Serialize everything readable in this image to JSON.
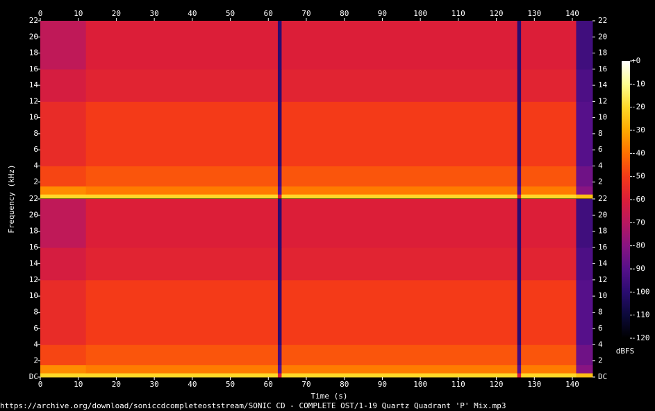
{
  "chart_data": {
    "type": "spectrogram",
    "xlabel": "Time (s)",
    "ylabel": "Frequency (kHz)",
    "footer": "https://archive.org/download/soniccdcompleteoststream/SONIC CD - COMPLETE OST/1-19 Quartz Quadrant 'P' Mix.mp3",
    "xlim": [
      0,
      145.3
    ],
    "xticks": [
      0,
      10,
      20,
      30,
      40,
      50,
      60,
      70,
      80,
      90,
      100,
      110,
      120,
      130,
      140
    ],
    "time_bins": [
      0,
      12,
      62.5,
      63.5,
      125.5,
      126.5,
      141,
      145.3
    ],
    "freq_bins": [
      0,
      0.5,
      1.5,
      4,
      12,
      16,
      22
    ],
    "channels": [
      {
        "ylim": [
          0,
          22
        ],
        "yticks": [
          2,
          4,
          6,
          8,
          10,
          12,
          14,
          16,
          18,
          20,
          22
        ],
        "values": [
          [
            -20,
            -20,
            -60,
            -20,
            -60,
            -20,
            -25
          ],
          [
            -35,
            -38,
            -90,
            -38,
            -90,
            -38,
            -80
          ],
          [
            -48,
            -45,
            -95,
            -45,
            -95,
            -45,
            -85
          ],
          [
            -55,
            -50,
            -100,
            -50,
            -100,
            -50,
            -90
          ],
          [
            -62,
            -58,
            -100,
            -58,
            -100,
            -58,
            -92
          ],
          [
            -68,
            -60,
            -100,
            -60,
            -100,
            -60,
            -95
          ]
        ]
      },
      {
        "ylim": [
          0,
          22
        ],
        "yticks": [
          {
            "value": 0,
            "label": "DC"
          },
          2,
          4,
          6,
          8,
          10,
          12,
          14,
          16,
          18,
          20,
          22
        ],
        "values": [
          [
            -20,
            -20,
            -60,
            -20,
            -60,
            -20,
            -25
          ],
          [
            -35,
            -38,
            -90,
            -38,
            -90,
            -38,
            -80
          ],
          [
            -48,
            -45,
            -95,
            -45,
            -95,
            -45,
            -85
          ],
          [
            -55,
            -50,
            -100,
            -50,
            -100,
            -50,
            -90
          ],
          [
            -62,
            -58,
            -100,
            -58,
            -100,
            -58,
            -92
          ],
          [
            -68,
            -60,
            -100,
            -60,
            -100,
            -60,
            -95
          ]
        ]
      }
    ],
    "clim": [
      -120,
      0
    ],
    "cticks": [
      {
        "value": 0,
        "label": "+0"
      },
      -10,
      -20,
      -30,
      -40,
      -50,
      -60,
      -70,
      -80,
      -90,
      -100,
      -110,
      -120
    ],
    "clabel": "dBFS",
    "colorscale": [
      [
        -120,
        "#000000"
      ],
      [
        -110,
        "#0c0a3a"
      ],
      [
        -100,
        "#2a0c70"
      ],
      [
        -90,
        "#56108a"
      ],
      [
        -80,
        "#881482"
      ],
      [
        -70,
        "#b81860"
      ],
      [
        -60,
        "#dc1e38"
      ],
      [
        -50,
        "#f43a18"
      ],
      [
        -40,
        "#ff7000"
      ],
      [
        -30,
        "#ffa800"
      ],
      [
        -20,
        "#ffd828"
      ],
      [
        -10,
        "#ffff90"
      ],
      [
        0,
        "#ffffff"
      ]
    ]
  }
}
